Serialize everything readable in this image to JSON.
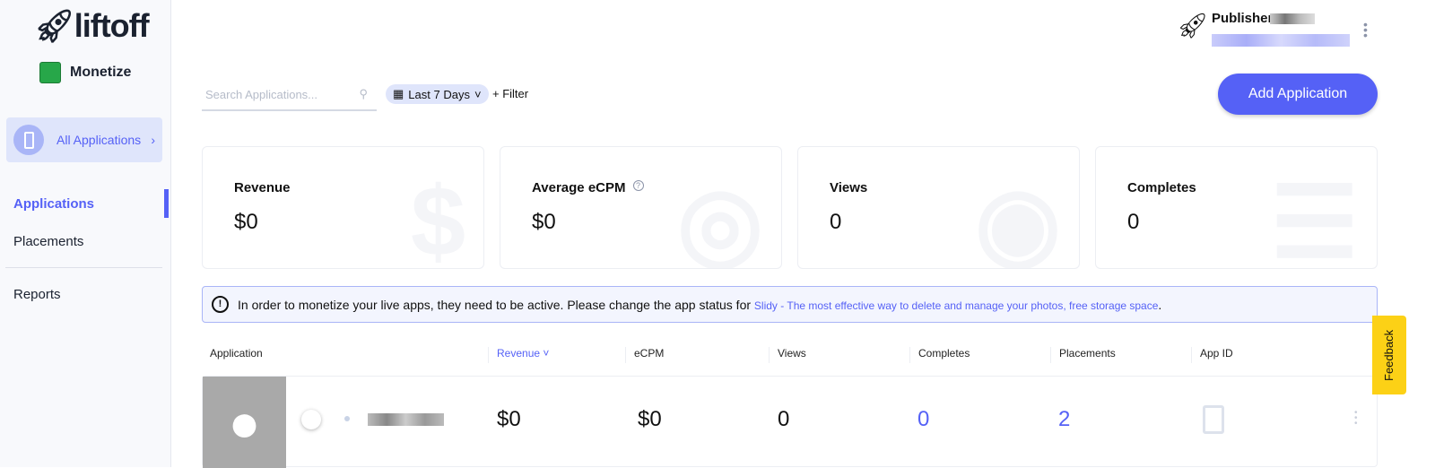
{
  "brand": {
    "logo": "liftoff",
    "product": "Monetize"
  },
  "sidebar": {
    "all_apps": "All Applications",
    "items": [
      {
        "label": "Applications",
        "active": true
      },
      {
        "label": "Placements"
      },
      {
        "label": "Reports"
      }
    ]
  },
  "toolbar": {
    "search_placeholder": "Search Applications...",
    "date_range": "Last 7 Days",
    "filter": "+ Filter",
    "add_button": "Add Application"
  },
  "publisher": {
    "label": "Publisher:"
  },
  "stats": [
    {
      "title": "Revenue",
      "value": "$0",
      "icon": "dollar-icon"
    },
    {
      "title": "Average eCPM",
      "value": "$0",
      "icon": "gauge-icon"
    },
    {
      "title": "Views",
      "value": "0",
      "icon": "eye-icon"
    },
    {
      "title": "Completes",
      "value": "0",
      "icon": "checklist-icon"
    }
  ],
  "alert": {
    "text": "In order to monetize your live apps, they need to be active. Please change the app status for",
    "link": "Slidy - The most effective way to delete and manage your photos, free storage space",
    "end": "."
  },
  "table": {
    "columns": [
      "Application",
      "Revenue ˅",
      "eCPM",
      "Views",
      "Completes",
      "Placements",
      "App ID"
    ],
    "rows": [
      {
        "revenue": "$0",
        "ecpm": "$0",
        "views": "0",
        "completes": "0",
        "placements": "2"
      }
    ]
  },
  "feedback": "Feedback",
  "colors": {
    "accent": "#5561f6",
    "feedback": "#fcd116",
    "monetize": "#27a749"
  }
}
